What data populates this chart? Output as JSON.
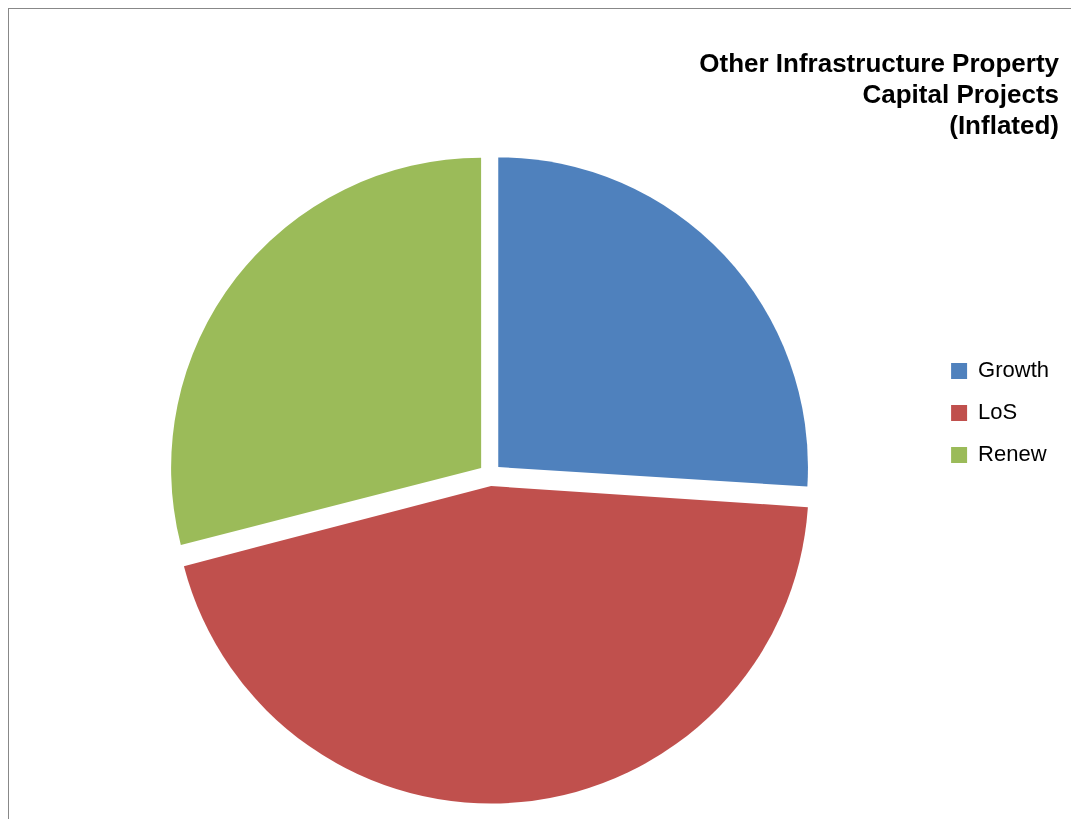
{
  "chart_data": {
    "type": "pie",
    "title": "Other Infrastructure Property\nCapital Projects\n(Inflated)",
    "categories": [
      "Growth",
      "LoS",
      "Renew"
    ],
    "values": [
      26,
      45,
      29
    ],
    "colors": [
      "#4f81bd",
      "#c0504d",
      "#9bbb59"
    ],
    "legend": "right"
  }
}
